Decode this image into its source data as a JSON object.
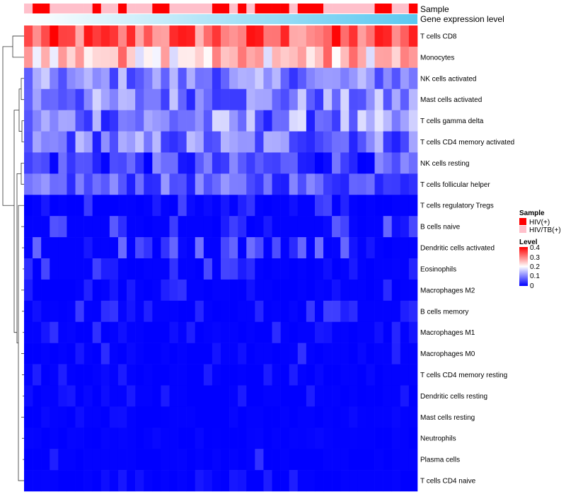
{
  "chart_data": {
    "type": "heatmap",
    "title": "",
    "annotations": {
      "sample_label": "Sample",
      "expression_label": "Gene expression level"
    },
    "rows": [
      "T cells CD8",
      "Monocytes",
      "NK cells activated",
      "Mast cells activated",
      "T cells gamma delta",
      "T cells CD4 memory activated",
      "NK cells resting",
      "T cells follicular helper",
      "T cells regulatory  Tregs",
      "B cells naive",
      "Dendritic cells activated",
      "Eosinophils",
      "Macrophages M2",
      "B cells memory",
      "Macrophages M1",
      "Macrophages M0",
      "T cells CD4 memory resting",
      "Dendritic cells resting",
      "Mast cells resting",
      "Neutrophils",
      "Plasma cells",
      "T cells CD4 naive"
    ],
    "n_samples": 46,
    "sample_groups": [
      1,
      0,
      0,
      1,
      1,
      1,
      1,
      1,
      0,
      1,
      1,
      0,
      1,
      1,
      1,
      0,
      0,
      1,
      1,
      1,
      1,
      1,
      0,
      0,
      1,
      0,
      1,
      0,
      0,
      0,
      0,
      1,
      0,
      0,
      0,
      1,
      1,
      1,
      1,
      1,
      1,
      0,
      0,
      1,
      1,
      0
    ],
    "level_scale": {
      "min": 0,
      "max": 0.4,
      "colors": [
        "#0000ff",
        "#ffffff",
        "#ff0000"
      ],
      "mid": 0.2
    },
    "row_profiles": [
      {
        "base": 0.32,
        "spread": 0.08
      },
      {
        "base": 0.25,
        "spread": 0.08
      },
      {
        "base": 0.1,
        "spread": 0.06
      },
      {
        "base": 0.1,
        "spread": 0.07
      },
      {
        "base": 0.1,
        "spread": 0.08
      },
      {
        "base": 0.09,
        "spread": 0.07
      },
      {
        "base": 0.05,
        "spread": 0.06
      },
      {
        "base": 0.07,
        "spread": 0.05
      },
      {
        "base": 0.02,
        "spread": 0.04
      },
      {
        "base": 0.04,
        "spread": 0.05
      },
      {
        "base": 0.04,
        "spread": 0.05
      },
      {
        "base": 0.02,
        "spread": 0.04
      },
      {
        "base": 0.02,
        "spread": 0.04
      },
      {
        "base": 0.02,
        "spread": 0.03
      },
      {
        "base": 0.01,
        "spread": 0.03
      },
      {
        "base": 0.01,
        "spread": 0.03
      },
      {
        "base": 0.005,
        "spread": 0.02
      },
      {
        "base": 0.005,
        "spread": 0.02
      },
      {
        "base": 0.002,
        "spread": 0.01
      },
      {
        "base": 0.001,
        "spread": 0.005
      },
      {
        "base": 0.01,
        "spread": 0.03
      },
      {
        "base": 0.005,
        "spread": 0.02
      }
    ]
  },
  "legend": {
    "sample_title": "Sample",
    "sample_items": [
      {
        "label": "HIV(+)",
        "color": "#ff0000"
      },
      {
        "label": "HIV/TB(+)",
        "color": "#ffc0cb"
      }
    ],
    "level_title": "Level",
    "level_ticks": [
      "0.4",
      "0.3",
      "0.2",
      "0.1",
      "0"
    ]
  },
  "colors": {
    "expression_bar_start": "#ffffff",
    "expression_bar_end": "#5bc8f0"
  }
}
